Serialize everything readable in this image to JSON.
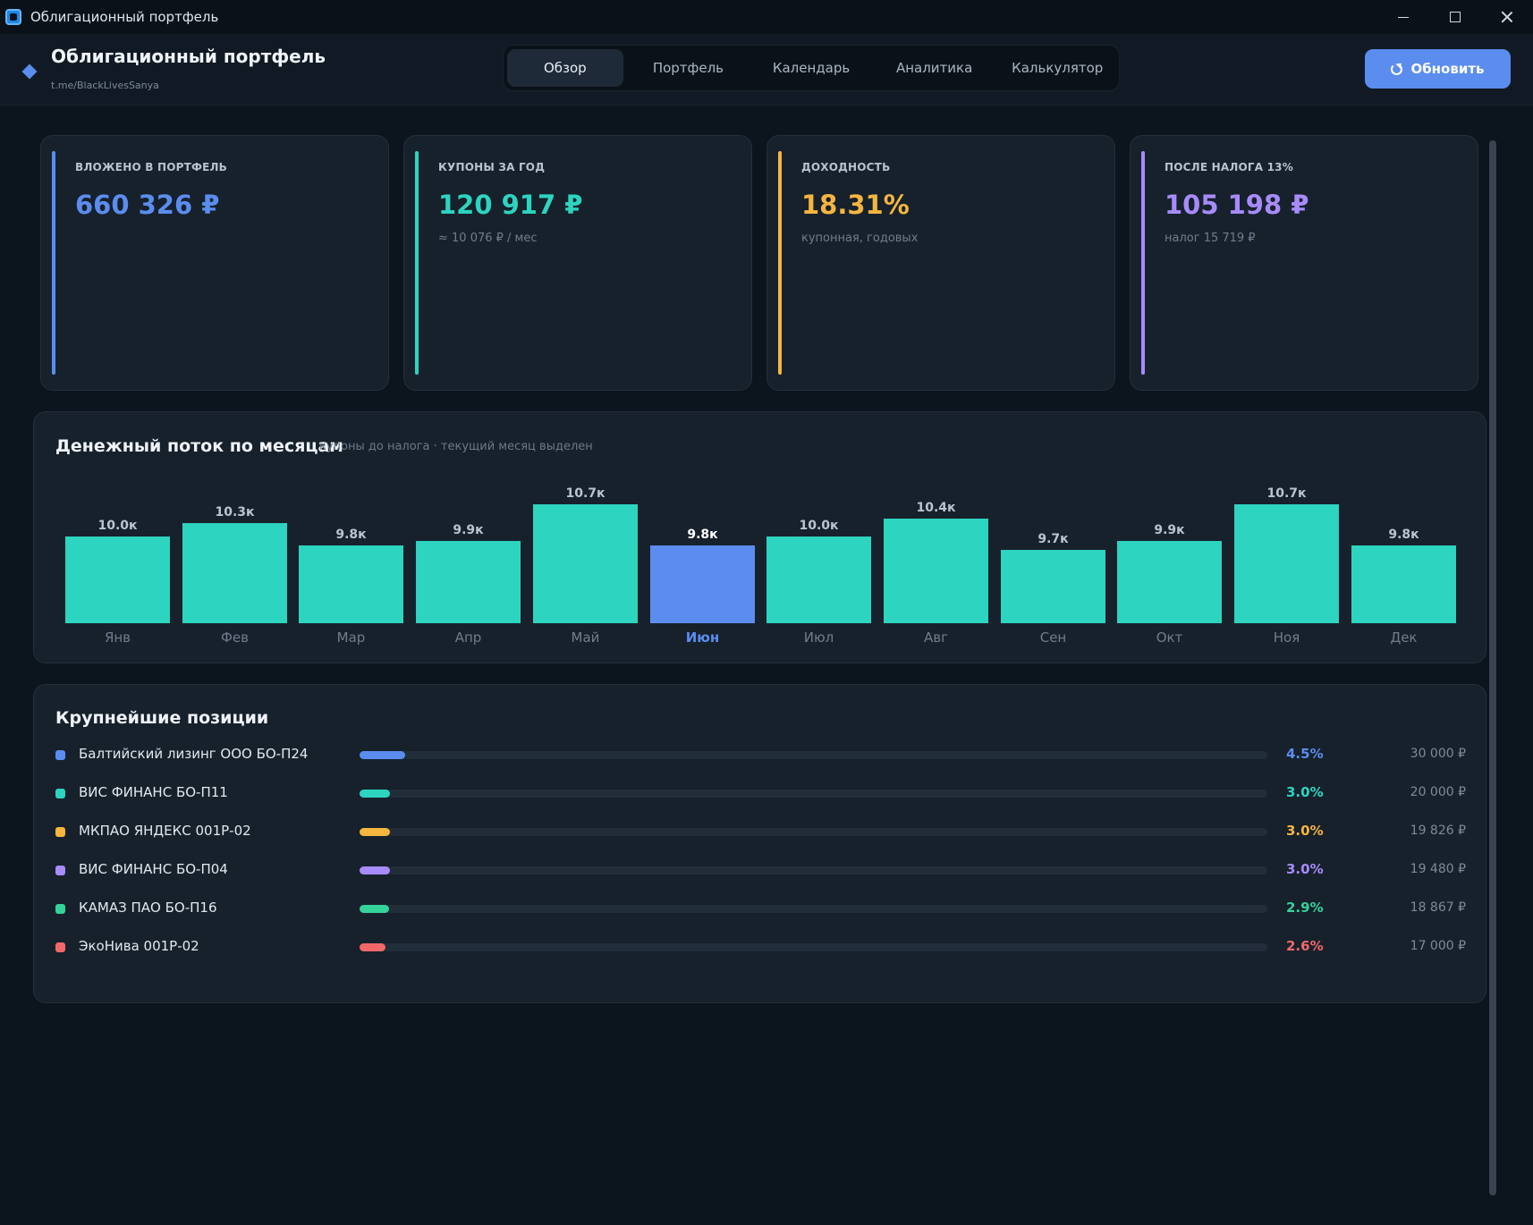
{
  "window": {
    "title": "Облигационный портфель"
  },
  "header": {
    "title": "Облигационный портфель",
    "subtitle": "t.me/BlackLivesSanya",
    "refresh_label": "Обновить"
  },
  "tabs": [
    {
      "label": "Обзор",
      "active": true
    },
    {
      "label": "Портфель",
      "active": false
    },
    {
      "label": "Календарь",
      "active": false
    },
    {
      "label": "Аналитика",
      "active": false
    },
    {
      "label": "Калькулятор",
      "active": false
    }
  ],
  "cards": [
    {
      "label": "ВЛОЖЕНО В ПОРТФЕЛЬ",
      "value": "660 326 ₽",
      "note": "",
      "color": "#5b8def"
    },
    {
      "label": "КУПОНЫ ЗА ГОД",
      "value": "120 917 ₽",
      "note": "≈ 10 076 ₽ / мес",
      "color": "#2dd4bf"
    },
    {
      "label": "ДОХОДНОСТЬ",
      "value": "18.31%",
      "note": "купонная, годовых",
      "color": "#f5b53f"
    },
    {
      "label": "ПОСЛЕ НАЛОГА 13%",
      "value": "105 198 ₽",
      "note": "налог 15 719 ₽",
      "color": "#a78bfa"
    }
  ],
  "cashflow": {
    "title": "Денежный поток по месяцам",
    "subtitle": "купоны до налога · текущий месяц выделен"
  },
  "chart_data": {
    "type": "bar",
    "categories": [
      "Янв",
      "Фев",
      "Мар",
      "Апр",
      "Май",
      "Июн",
      "Июл",
      "Авг",
      "Сен",
      "Окт",
      "Ноя",
      "Дек"
    ],
    "values": [
      10.0,
      10.3,
      9.8,
      9.9,
      10.7,
      9.8,
      10.0,
      10.4,
      9.7,
      9.9,
      10.7,
      9.8
    ],
    "value_labels": [
      "10.0к",
      "10.3к",
      "9.8к",
      "9.9к",
      "10.7к",
      "9.8к",
      "10.0к",
      "10.4к",
      "9.7к",
      "9.9к",
      "10.7к",
      "9.8к"
    ],
    "highlight_index": 5,
    "bar_color": "#2dd4bf",
    "highlight_color": "#5b8def",
    "title": "Денежный поток по месяцам",
    "xlabel": "",
    "ylabel": ""
  },
  "positions": {
    "title": "Крупнейшие позиции",
    "items": [
      {
        "name": "Балтийский лизинг ООО БО-П24",
        "pct_label": "4.5%",
        "pct": 4.5,
        "amount": "30 000 ₽",
        "color": "#5b8def"
      },
      {
        "name": "ВИС ФИНАНС БО-П11",
        "pct_label": "3.0%",
        "pct": 3.0,
        "amount": "20 000 ₽",
        "color": "#2dd4bf"
      },
      {
        "name": "МКПАО ЯНДЕКС 001Р-02",
        "pct_label": "3.0%",
        "pct": 3.0,
        "amount": "19 826 ₽",
        "color": "#f5b53f"
      },
      {
        "name": "ВИС ФИНАНС БО-П04",
        "pct_label": "3.0%",
        "pct": 3.0,
        "amount": "19 480 ₽",
        "color": "#a78bfa"
      },
      {
        "name": "КАМАЗ ПАО БО-П16",
        "pct_label": "2.9%",
        "pct": 2.9,
        "amount": "18 867 ₽",
        "color": "#34d399"
      },
      {
        "name": "ЭкоНива 001Р-02",
        "pct_label": "2.6%",
        "pct": 2.6,
        "amount": "17 000 ₽",
        "color": "#f0686a"
      }
    ]
  }
}
